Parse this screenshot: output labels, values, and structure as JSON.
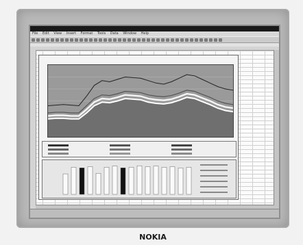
{
  "logo_text": "NOKIA",
  "menu_items": [
    "File",
    "Edit",
    "View",
    "Insert",
    "Format",
    "Tools",
    "Data",
    "Window",
    "Help"
  ],
  "icons": {
    "toolbar_button": "square-icon"
  },
  "chart_data": {
    "type": "line",
    "x": [
      0,
      1,
      2,
      3,
      4,
      5,
      6,
      7,
      8,
      9,
      10,
      11,
      12,
      13,
      14,
      15,
      16,
      17,
      18,
      19,
      20,
      21,
      22,
      23,
      24
    ],
    "series": [
      {
        "values": [
          52,
          53,
          54,
          53,
          52,
          68,
          86,
          94,
          92,
          96,
          100,
          99,
          98,
          94,
          90,
          88,
          92,
          98,
          104,
          102,
          96,
          90,
          84,
          80,
          78
        ]
      },
      {
        "values": [
          40,
          41,
          41,
          40,
          40,
          52,
          64,
          70,
          69,
          72,
          76,
          75,
          74,
          70,
          68,
          67,
          69,
          73,
          78,
          76,
          71,
          66,
          60,
          56,
          54
        ]
      },
      {
        "values": [
          35,
          36,
          36,
          35,
          35,
          46,
          58,
          64,
          63,
          66,
          70,
          69,
          68,
          64,
          62,
          61,
          63,
          67,
          72,
          70,
          65,
          60,
          54,
          50,
          48
        ]
      },
      {
        "values": [
          30,
          31,
          31,
          30,
          30,
          40,
          52,
          58,
          57,
          60,
          64,
          63,
          62,
          58,
          56,
          55,
          57,
          61,
          66,
          64,
          59,
          54,
          48,
          44,
          42
        ]
      }
    ],
    "ylim": [
      0,
      120
    ],
    "grid": true,
    "title": "",
    "xlabel": "",
    "ylabel": ""
  },
  "bar_chart": {
    "type": "bar",
    "values": [
      68,
      90,
      88,
      92,
      70,
      90,
      94,
      88,
      90,
      95,
      92,
      94,
      90,
      92,
      88,
      90
    ],
    "highlight": [
      2,
      7
    ]
  }
}
